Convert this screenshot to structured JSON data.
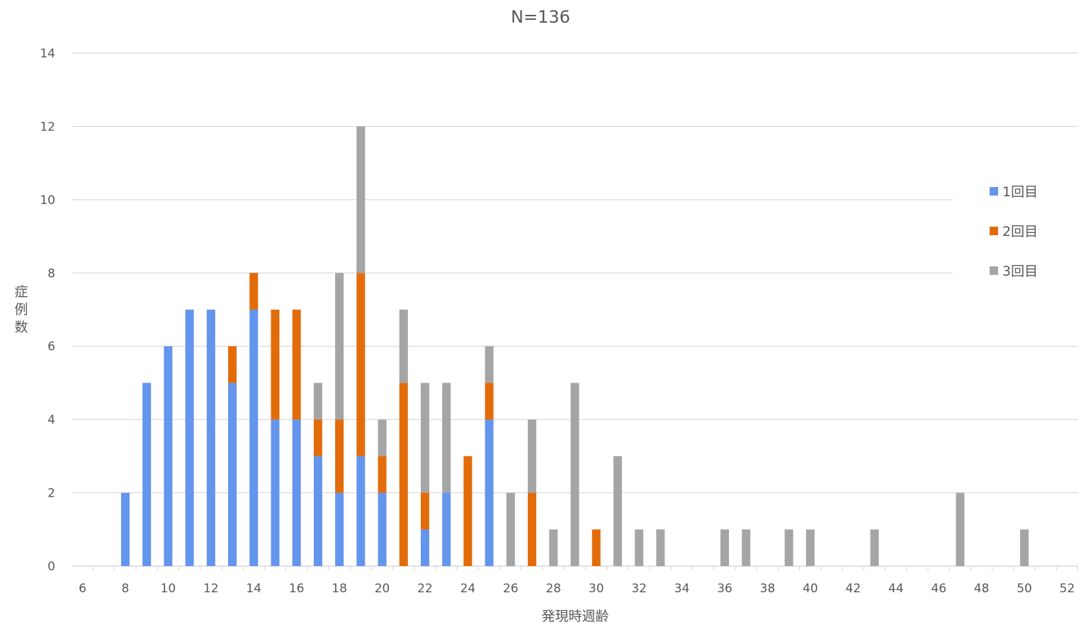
{
  "chart_data": {
    "type": "bar",
    "stacked": true,
    "title": "N=136",
    "xlabel": "発現時週齢",
    "ylabel": "症例数",
    "xlim": [
      6,
      52
    ],
    "ylim": [
      0,
      14
    ],
    "x_ticks": [
      "6",
      "8",
      "10",
      "12",
      "14",
      "16",
      "18",
      "20",
      "22",
      "24",
      "26",
      "28",
      "30",
      "32",
      "34",
      "36",
      "38",
      "40",
      "42",
      "44",
      "46",
      "48",
      "50",
      "52"
    ],
    "y_ticks": [
      "0",
      "2",
      "4",
      "6",
      "8",
      "10",
      "12",
      "14"
    ],
    "grid": true,
    "legend_position": "right",
    "x": [
      8,
      9,
      10,
      11,
      12,
      13,
      14,
      15,
      16,
      17,
      18,
      19,
      20,
      21,
      22,
      23,
      24,
      25,
      26,
      27,
      28,
      29,
      30,
      31,
      32,
      33,
      36,
      37,
      39,
      40,
      43,
      47,
      50
    ],
    "series": [
      {
        "name": "1回目",
        "color": "#6495ED",
        "values": [
          2,
          5,
          6,
          7,
          7,
          5,
          7,
          4,
          4,
          3,
          2,
          3,
          2,
          0,
          1,
          2,
          0,
          4,
          0,
          0,
          0,
          0,
          0,
          0,
          0,
          0,
          0,
          0,
          0,
          0,
          0,
          0,
          0
        ]
      },
      {
        "name": "2回目",
        "color": "#E36C0A",
        "values": [
          0,
          0,
          0,
          0,
          0,
          1,
          1,
          3,
          3,
          1,
          2,
          5,
          1,
          5,
          1,
          0,
          3,
          1,
          0,
          2,
          0,
          0,
          1,
          0,
          0,
          0,
          0,
          0,
          0,
          0,
          0,
          0,
          0
        ]
      },
      {
        "name": "3回目",
        "color": "#A5A5A5",
        "values": [
          0,
          0,
          0,
          0,
          0,
          0,
          0,
          0,
          0,
          1,
          4,
          4,
          1,
          2,
          3,
          3,
          0,
          1,
          2,
          2,
          1,
          5,
          0,
          3,
          1,
          1,
          1,
          1,
          1,
          1,
          1,
          2,
          1
        ]
      }
    ]
  }
}
